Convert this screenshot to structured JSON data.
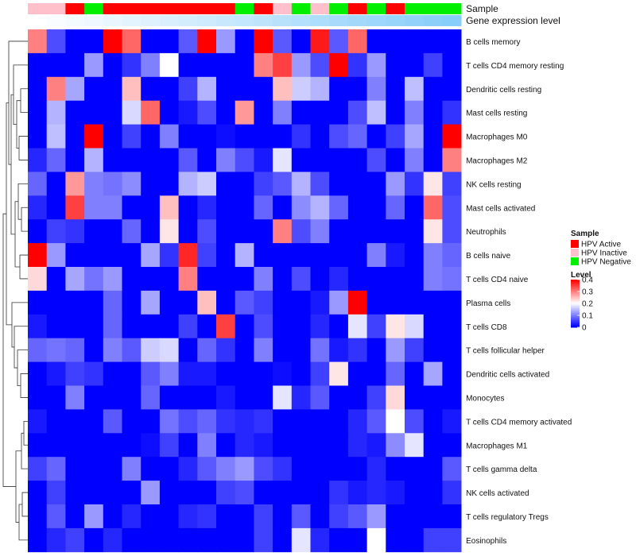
{
  "chart_data": {
    "type": "heatmap",
    "title": "",
    "annotation_tracks": [
      "Sample",
      "Gene expression level"
    ],
    "rows": [
      "B cells memory",
      "T cells CD4 memory resting",
      "Dendritic cells resting",
      "Mast cells resting",
      "Macrophages M0",
      "Macrophages M2",
      "NK cells resting",
      "Mast cells activated",
      "Neutrophils",
      "B cells naive",
      "T cells CD4 naive",
      "Plasma cells",
      "T cells CD8",
      "T cells follicular helper",
      "Dendritic cells activated",
      "Monocytes",
      "T cells CD4 memory activated",
      "Macrophages M1",
      "T cells gamma delta",
      "NK cells activated",
      "T cells regulatory  Tregs",
      "Eosinophils"
    ],
    "sample_groups": [
      "HPV Inactive",
      "HPV Inactive",
      "HPV Active",
      "HPV Negative",
      "HPV Active",
      "HPV Active",
      "HPV Active",
      "HPV Active",
      "HPV Active",
      "HPV Active",
      "HPV Active",
      "HPV Negative",
      "HPV Active",
      "HPV Inactive",
      "HPV Negative",
      "HPV Inactive",
      "HPV Negative",
      "HPV Active",
      "HPV Negative",
      "HPV Active",
      "HPV Negative",
      "HPV Negative",
      "HPV Negative"
    ],
    "expression_gradient": [
      0.05,
      0.1,
      0.15,
      0.2,
      0.25,
      0.3,
      0.35,
      0.4,
      0.45,
      0.5,
      0.55,
      0.6,
      0.65,
      0.7,
      0.75,
      0.8,
      0.85,
      0.9,
      0.95,
      1.0,
      1.05,
      1.1,
      1.15
    ],
    "values": [
      [
        0.3,
        0.06,
        0.0,
        0.0,
        0.4,
        0.32,
        0.0,
        0.0,
        0.07,
        0.4,
        0.12,
        0.0,
        0.4,
        0.07,
        0.0,
        0.38,
        0.07,
        0.32,
        0.0,
        0.0,
        0.0,
        0.0,
        0.0
      ],
      [
        0.0,
        0.0,
        0.0,
        0.12,
        0.0,
        0.04,
        0.1,
        0.2,
        0.0,
        0.0,
        0.0,
        0.0,
        0.3,
        0.35,
        0.12,
        0.06,
        0.4,
        0.04,
        0.12,
        0.0,
        0.0,
        0.05,
        0.0
      ],
      [
        0.0,
        0.3,
        0.13,
        0.0,
        0.0,
        0.25,
        0.0,
        0.0,
        0.05,
        0.14,
        0.0,
        0.0,
        0.0,
        0.25,
        0.16,
        0.14,
        0.0,
        0.0,
        0.1,
        0.0,
        0.15,
        0.0,
        0.0
      ],
      [
        0.0,
        0.14,
        0.0,
        0.0,
        0.0,
        0.17,
        0.32,
        0.0,
        0.02,
        0.06,
        0.0,
        0.28,
        0.0,
        0.1,
        0.0,
        0.0,
        0.0,
        0.06,
        0.15,
        0.0,
        0.1,
        0.0,
        0.04
      ],
      [
        0.0,
        0.15,
        0.0,
        0.4,
        0.0,
        0.05,
        0.0,
        0.1,
        0.0,
        0.0,
        0.01,
        0.0,
        0.0,
        0.0,
        0.04,
        0.0,
        0.06,
        0.08,
        0.0,
        0.05,
        0.13,
        0.0,
        0.4
      ],
      [
        0.03,
        0.08,
        0.0,
        0.14,
        0.0,
        0.0,
        0.0,
        0.0,
        0.07,
        0.0,
        0.1,
        0.06,
        0.02,
        0.18,
        0.0,
        0.0,
        0.0,
        0.0,
        0.06,
        0.0,
        0.1,
        0.0,
        0.3
      ],
      [
        0.08,
        0.0,
        0.28,
        0.1,
        0.09,
        0.11,
        0.0,
        0.0,
        0.14,
        0.16,
        0.0,
        0.0,
        0.05,
        0.07,
        0.14,
        0.06,
        0.0,
        0.0,
        0.0,
        0.12,
        0.04,
        0.22,
        0.05
      ],
      [
        0.03,
        0.0,
        0.35,
        0.1,
        0.1,
        0.0,
        0.0,
        0.25,
        0.0,
        0.03,
        0.0,
        0.0,
        0.08,
        0.0,
        0.11,
        0.14,
        0.08,
        0.0,
        0.0,
        0.08,
        0.0,
        0.32,
        0.06
      ],
      [
        0.0,
        0.05,
        0.04,
        0.0,
        0.0,
        0.08,
        0.0,
        0.22,
        0.0,
        0.06,
        0.0,
        0.0,
        0.0,
        0.3,
        0.06,
        0.1,
        0.0,
        0.0,
        0.0,
        0.0,
        0.0,
        0.22,
        0.06
      ],
      [
        0.4,
        0.12,
        0.0,
        0.0,
        0.0,
        0.0,
        0.13,
        0.04,
        0.37,
        0.05,
        0.0,
        0.14,
        0.0,
        0.0,
        0.0,
        0.0,
        0.0,
        0.0,
        0.1,
        0.02,
        0.0,
        0.1,
        0.08
      ],
      [
        0.23,
        0.0,
        0.13,
        0.09,
        0.12,
        0.0,
        0.0,
        0.0,
        0.3,
        0.0,
        0.0,
        0.0,
        0.1,
        0.0,
        0.06,
        0.0,
        0.03,
        0.0,
        0.0,
        0.0,
        0.0,
        0.1,
        0.09
      ],
      [
        0.0,
        0.0,
        0.0,
        0.0,
        0.08,
        0.0,
        0.13,
        0.0,
        0.0,
        0.25,
        0.0,
        0.07,
        0.05,
        0.0,
        0.0,
        0.02,
        0.12,
        0.4,
        0.0,
        0.0,
        0.0,
        0.0,
        0.0
      ],
      [
        0.02,
        0.0,
        0.0,
        0.0,
        0.08,
        0.0,
        0.0,
        0.0,
        0.05,
        0.0,
        0.35,
        0.0,
        0.06,
        0.0,
        0.0,
        0.03,
        0.0,
        0.18,
        0.05,
        0.22,
        0.17,
        0.0,
        0.0
      ],
      [
        0.08,
        0.09,
        0.08,
        0.0,
        0.1,
        0.07,
        0.16,
        0.17,
        0.0,
        0.08,
        0.04,
        0.0,
        0.1,
        0.0,
        0.0,
        0.09,
        0.02,
        0.04,
        0.0,
        0.12,
        0.05,
        0.0,
        0.0
      ],
      [
        0.0,
        0.02,
        0.05,
        0.04,
        0.0,
        0.0,
        0.07,
        0.1,
        0.02,
        0.02,
        0.0,
        0.0,
        0.0,
        0.01,
        0.0,
        0.05,
        0.22,
        0.0,
        0.0,
        0.08,
        0.0,
        0.13,
        0.0
      ],
      [
        0.0,
        0.0,
        0.1,
        0.0,
        0.0,
        0.0,
        0.08,
        0.0,
        0.0,
        0.0,
        0.02,
        0.0,
        0.0,
        0.18,
        0.03,
        0.07,
        0.0,
        0.0,
        0.05,
        0.23,
        0.0,
        0.0,
        0.0
      ],
      [
        0.02,
        0.0,
        0.0,
        0.0,
        0.07,
        0.0,
        0.0,
        0.09,
        0.06,
        0.08,
        0.04,
        0.03,
        0.04,
        0.0,
        0.0,
        0.0,
        0.0,
        0.03,
        0.07,
        0.2,
        0.06,
        0.0,
        0.02
      ],
      [
        0.0,
        0.0,
        0.0,
        0.0,
        0.0,
        0.0,
        0.01,
        0.05,
        0.0,
        0.1,
        0.0,
        0.03,
        0.02,
        0.0,
        0.0,
        0.0,
        0.0,
        0.03,
        0.02,
        0.11,
        0.18,
        0.0,
        0.0
      ],
      [
        0.05,
        0.08,
        0.0,
        0.0,
        0.0,
        0.1,
        0.0,
        0.0,
        0.03,
        0.07,
        0.1,
        0.12,
        0.06,
        0.04,
        0.0,
        0.0,
        0.0,
        0.0,
        0.03,
        0.0,
        0.0,
        0.0,
        0.07
      ],
      [
        0.0,
        0.05,
        0.0,
        0.0,
        0.0,
        0.0,
        0.12,
        0.0,
        0.0,
        0.0,
        0.05,
        0.06,
        0.0,
        0.0,
        0.0,
        0.0,
        0.04,
        0.02,
        0.03,
        0.02,
        0.0,
        0.0,
        0.04
      ],
      [
        0.0,
        0.07,
        0.0,
        0.12,
        0.0,
        0.03,
        0.0,
        0.0,
        0.03,
        0.04,
        0.0,
        0.0,
        0.05,
        0.0,
        0.07,
        0.0,
        0.05,
        0.07,
        0.12,
        0.0,
        0.0,
        0.0,
        0.0
      ],
      [
        0.0,
        0.03,
        0.05,
        0.0,
        0.03,
        0.0,
        0.0,
        0.0,
        0.0,
        0.0,
        0.0,
        0.0,
        0.05,
        0.0,
        0.18,
        0.03,
        0.0,
        0.0,
        0.2,
        0.0,
        0.0,
        0.05,
        0.05
      ]
    ],
    "legend": {
      "sample": {
        "title": "Sample",
        "entries": [
          {
            "label": "HPV Active",
            "color": "#ff0000"
          },
          {
            "label": "HPV Inactive",
            "color": "#ffc0cb"
          },
          {
            "label": "HPV Negative",
            "color": "#00ee00"
          }
        ]
      },
      "level": {
        "title": "Level",
        "ticks": [
          0,
          0.1,
          0.2,
          0.3,
          0.4
        ],
        "tick_labels": [
          "0",
          "0.1",
          "0.2",
          "0.3",
          "0.4"
        ],
        "range": [
          0,
          0.4
        ],
        "colors": [
          "#0000ff",
          "#ffffff",
          "#ff0000"
        ]
      }
    },
    "gradient_track_colors": [
      "#ffffff",
      "#87cefa"
    ],
    "row_dendrogram": true
  }
}
